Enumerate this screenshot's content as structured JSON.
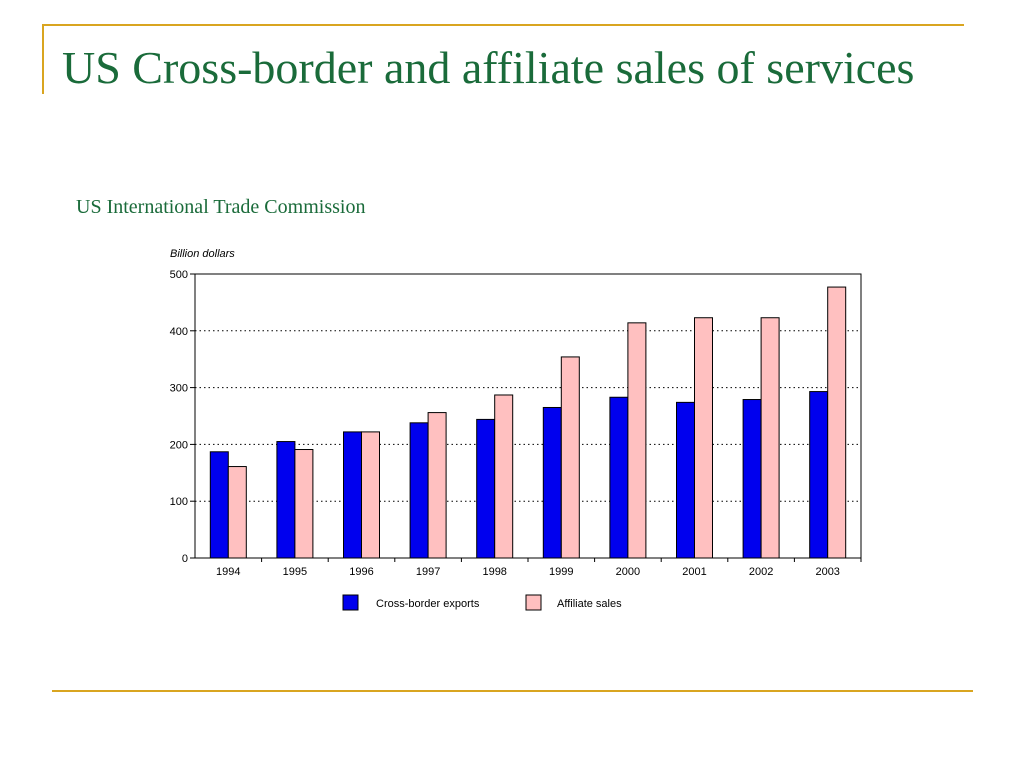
{
  "slide": {
    "title": "US Cross-border and affiliate sales of services",
    "subtitle": "US International Trade Commission"
  },
  "colors": {
    "title": "#1a6b3a",
    "accent": "#d9a520",
    "cross_border": "#0000ee",
    "affiliate": "#ffc0c0"
  },
  "chart_data": {
    "type": "bar",
    "title": "",
    "ylabel": "Billion dollars",
    "xlabel": "",
    "ylim": [
      0,
      500
    ],
    "yticks": [
      "0",
      "100",
      "200",
      "300",
      "400",
      "500"
    ],
    "categories": [
      "1994",
      "1995",
      "1996",
      "1997",
      "1998",
      "1999",
      "2000",
      "2001",
      "2002",
      "2003"
    ],
    "series": [
      {
        "name": "Cross-border exports",
        "values": [
          187,
          205,
          222,
          238,
          244,
          265,
          283,
          274,
          279,
          293
        ]
      },
      {
        "name": "Affiliate sales",
        "values": [
          161,
          191,
          222,
          256,
          287,
          354,
          414,
          423,
          423,
          477
        ]
      }
    ],
    "grid": "dotted horizontal",
    "legend": "bottom"
  }
}
